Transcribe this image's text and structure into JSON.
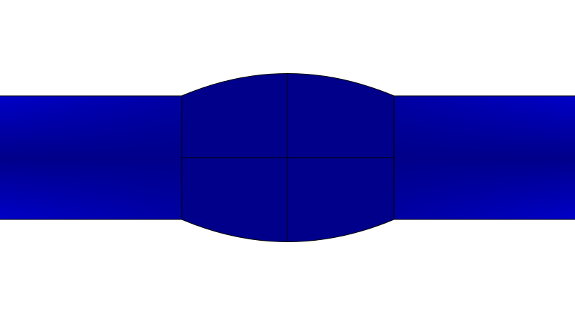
{
  "colors": {
    "background": "#ffffff",
    "bar_center": "#00008a",
    "bar_edge": "#0000c8",
    "bulge_fill": "#00008a",
    "outline": "#000000"
  }
}
